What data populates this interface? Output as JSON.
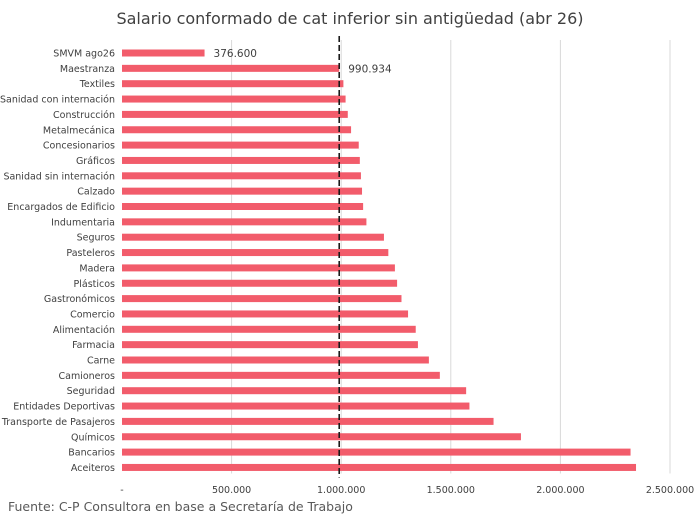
{
  "chart_data": {
    "type": "bar",
    "orientation": "horizontal",
    "title": "Salario conformado de cat inferior sin antigüedad (abr 26)",
    "categories": [
      "SMVM ago26",
      "Maestranza",
      "Textiles",
      "Sanidad con internación",
      "Construcción",
      "Metalmecánica",
      "Concesionarios",
      "Gráficos",
      "Sanidad sin internación",
      "Calzado",
      "Encargados de Edificio",
      "Indumentaria",
      "Seguros",
      "Pasteleros",
      "Madera",
      "Plásticos",
      "Gastronómicos",
      "Comercio",
      "Alimentación",
      "Farmacia",
      "Carne",
      "Camioneros",
      "Seguridad",
      "Entidades Deportivas",
      "Transporte de Pasajeros",
      "Químicos",
      "Bancarios",
      "Aceiteros"
    ],
    "values": [
      376600,
      990934,
      1010000,
      1020000,
      1030000,
      1045000,
      1080000,
      1085000,
      1090000,
      1095000,
      1100000,
      1115000,
      1195000,
      1215000,
      1245000,
      1255000,
      1275000,
      1305000,
      1340000,
      1350000,
      1400000,
      1450000,
      1570000,
      1585000,
      1695000,
      1820000,
      2320000,
      2345000
    ],
    "data_labels": [
      {
        "category": "SMVM ago26",
        "text": "376.600"
      },
      {
        "category": "Maestranza",
        "text": "990.934"
      }
    ],
    "xlim": [
      0,
      2500000
    ],
    "x_ticks": [
      "-",
      "500.000",
      "1.000.000",
      "1.500.000",
      "2.000.000",
      "2.500.000"
    ],
    "reference_line": 990934,
    "grid": "vertical",
    "bar_color": "#F25C6B",
    "xlabel": "",
    "ylabel": ""
  },
  "footer": {
    "source": "Fuente: C-P Consultora en base a Secretaría de Trabajo"
  }
}
